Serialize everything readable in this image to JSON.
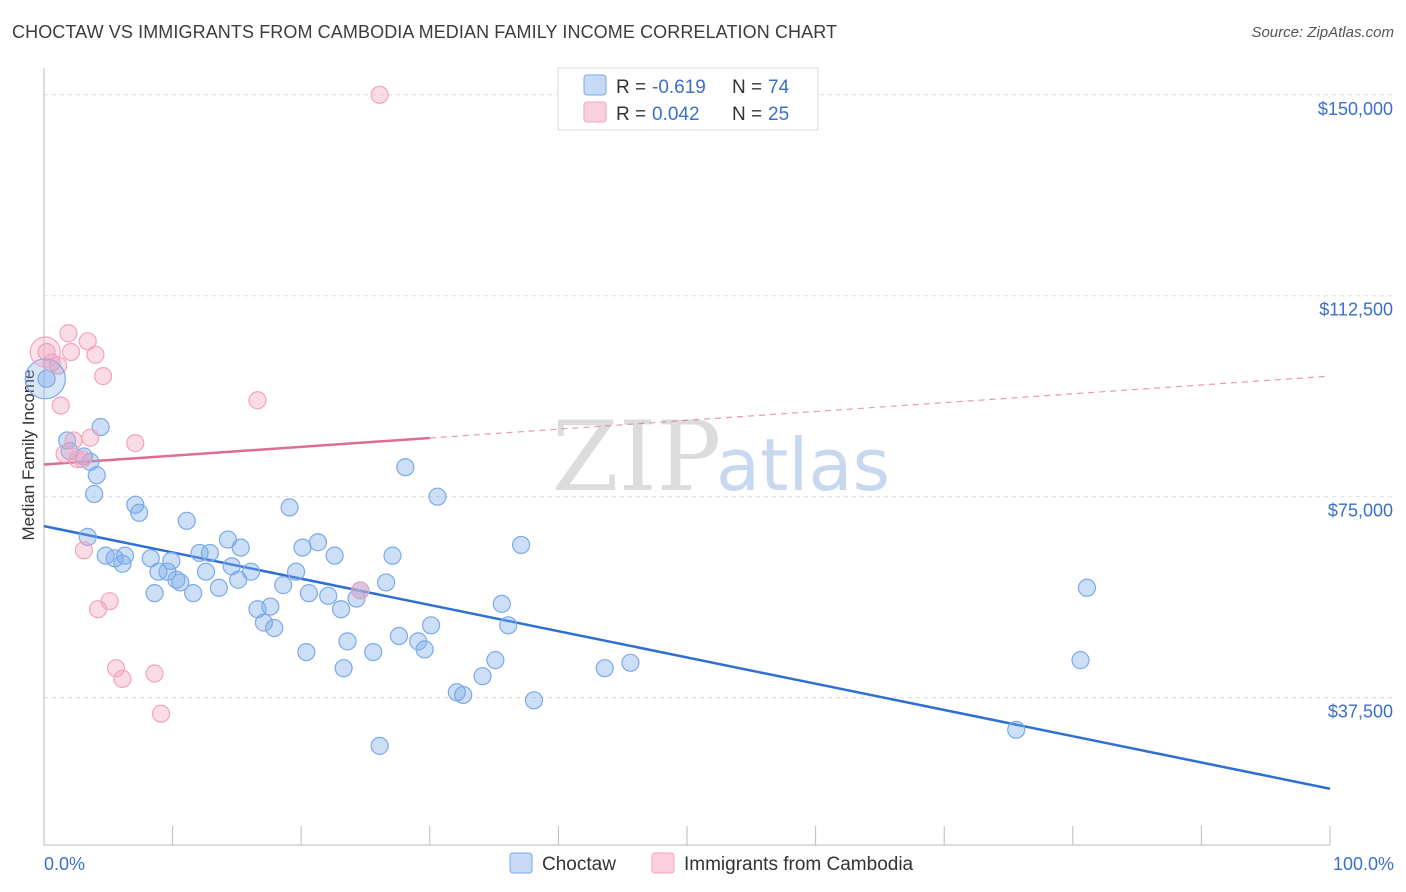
{
  "header": {
    "title": "CHOCTAW VS IMMIGRANTS FROM CAMBODIA MEDIAN FAMILY INCOME CORRELATION CHART",
    "source": "Source: ZipAtlas.com"
  },
  "watermark": {
    "zip": "ZIP",
    "atlas": "atlas"
  },
  "chart_data": {
    "type": "scatter",
    "title": "CHOCTAW VS IMMIGRANTS FROM CAMBODIA MEDIAN FAMILY INCOME CORRELATION CHART",
    "ylabel": "Median Family Income",
    "xlabel": "",
    "xlim": [
      0,
      100
    ],
    "ylim": [
      10000,
      155000
    ],
    "y_ticks": [
      {
        "value": 37500,
        "label": "$37,500"
      },
      {
        "value": 75000,
        "label": "$75,000"
      },
      {
        "value": 112500,
        "label": "$112,500"
      },
      {
        "value": 150000,
        "label": "$150,000"
      }
    ],
    "x_tick_labels": [
      {
        "value": 0,
        "label": "0.0%"
      },
      {
        "value": 100,
        "label": "100.0%"
      }
    ],
    "grid": "horizontal-dashed",
    "legend_placement": "top-center",
    "stats": [
      {
        "r_label": "R =",
        "r_value": "-0.619",
        "n_label": "N =",
        "n_value": "74"
      },
      {
        "r_label": "R =",
        "r_value": "0.042",
        "n_label": "N =",
        "n_value": "25"
      }
    ],
    "series": [
      {
        "name": "Choctaw",
        "color": "#7aaae8",
        "line_color": "#2f6fd1",
        "trend": {
          "x0": 0,
          "y0": 69500,
          "x1": 100,
          "y1": 20500
        },
        "points": [
          [
            0.2,
            97000
          ],
          [
            1.8,
            85500
          ],
          [
            2.0,
            83500
          ],
          [
            3.1,
            82500
          ],
          [
            3.6,
            81500
          ],
          [
            4.1,
            79000
          ],
          [
            3.9,
            75500
          ],
          [
            4.4,
            88000
          ],
          [
            3.4,
            67500
          ],
          [
            4.8,
            64000
          ],
          [
            5.5,
            63500
          ],
          [
            6.3,
            64000
          ],
          [
            6.1,
            62500
          ],
          [
            7.1,
            73500
          ],
          [
            7.4,
            72000
          ],
          [
            8.3,
            63500
          ],
          [
            8.6,
            57000
          ],
          [
            8.9,
            61000
          ],
          [
            9.6,
            61000
          ],
          [
            9.9,
            63000
          ],
          [
            10.3,
            59500
          ],
          [
            10.6,
            59000
          ],
          [
            11.1,
            70500
          ],
          [
            11.6,
            57000
          ],
          [
            12.1,
            64500
          ],
          [
            12.6,
            61000
          ],
          [
            12.9,
            64500
          ],
          [
            13.6,
            58000
          ],
          [
            14.3,
            67000
          ],
          [
            14.6,
            62000
          ],
          [
            15.1,
            59500
          ],
          [
            15.3,
            65500
          ],
          [
            16.1,
            61000
          ],
          [
            16.6,
            54000
          ],
          [
            17.1,
            51500
          ],
          [
            17.6,
            54500
          ],
          [
            17.9,
            50500
          ],
          [
            18.6,
            58500
          ],
          [
            19.1,
            73000
          ],
          [
            19.6,
            61000
          ],
          [
            20.1,
            65500
          ],
          [
            20.4,
            46000
          ],
          [
            20.6,
            57000
          ],
          [
            21.3,
            66500
          ],
          [
            22.1,
            56500
          ],
          [
            22.6,
            64000
          ],
          [
            23.1,
            54000
          ],
          [
            23.3,
            43000
          ],
          [
            23.6,
            48000
          ],
          [
            24.3,
            56000
          ],
          [
            24.6,
            57500
          ],
          [
            25.6,
            46000
          ],
          [
            26.1,
            28500
          ],
          [
            26.6,
            59000
          ],
          [
            27.1,
            64000
          ],
          [
            27.6,
            49000
          ],
          [
            28.1,
            80500
          ],
          [
            29.1,
            48000
          ],
          [
            29.6,
            46500
          ],
          [
            30.1,
            51000
          ],
          [
            30.6,
            75000
          ],
          [
            32.1,
            38500
          ],
          [
            32.6,
            38000
          ],
          [
            34.1,
            41500
          ],
          [
            35.1,
            44500
          ],
          [
            35.6,
            55000
          ],
          [
            36.1,
            51000
          ],
          [
            37.1,
            66000
          ],
          [
            38.1,
            37000
          ],
          [
            43.6,
            43000
          ],
          [
            45.6,
            44000
          ],
          [
            75.6,
            31500
          ],
          [
            80.6,
            44500
          ],
          [
            81.1,
            58000
          ]
        ]
      },
      {
        "name": "Immigrants from Cambodia",
        "color": "#f3a3bd",
        "line_color": "#e06b93",
        "trend": {
          "x0": 0,
          "y0": 81000,
          "x1": 100,
          "y1": 97500,
          "solid_until": 30
        },
        "points": [
          [
            0.2,
            102000
          ],
          [
            0.6,
            100000
          ],
          [
            1.1,
            99500
          ],
          [
            1.3,
            92000
          ],
          [
            1.6,
            83000
          ],
          [
            1.9,
            105500
          ],
          [
            2.1,
            102000
          ],
          [
            2.3,
            85500
          ],
          [
            2.6,
            82000
          ],
          [
            3.0,
            82000
          ],
          [
            3.1,
            65000
          ],
          [
            3.4,
            104000
          ],
          [
            3.6,
            86000
          ],
          [
            4.0,
            101500
          ],
          [
            4.2,
            54000
          ],
          [
            4.6,
            97500
          ],
          [
            5.1,
            55500
          ],
          [
            5.6,
            43000
          ],
          [
            6.1,
            41000
          ],
          [
            7.1,
            85000
          ],
          [
            8.6,
            42000
          ],
          [
            9.1,
            34500
          ],
          [
            16.6,
            93000
          ],
          [
            24.6,
            57500
          ],
          [
            26.1,
            150000
          ]
        ]
      }
    ]
  }
}
